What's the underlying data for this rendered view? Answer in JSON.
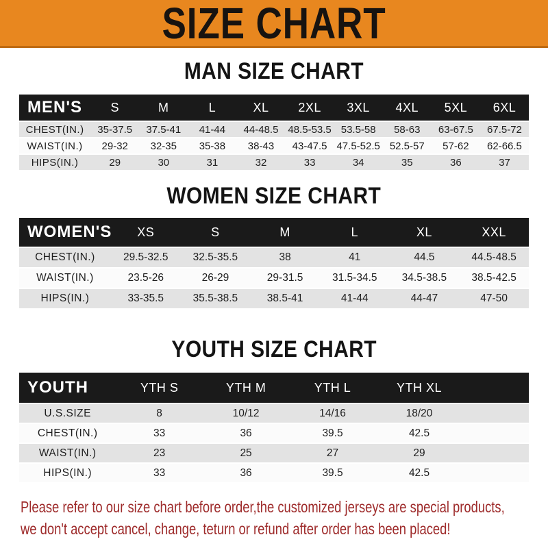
{
  "banner": {
    "title": "SIZE CHART"
  },
  "chart_data": [
    {
      "type": "table",
      "title": "MAN SIZE CHART",
      "header_label": "MEN'S",
      "columns": [
        "S",
        "M",
        "L",
        "XL",
        "2XL",
        "3XL",
        "4XL",
        "5XL",
        "6XL"
      ],
      "rows": [
        {
          "label": "CHEST(IN.)",
          "values": [
            "35-37.5",
            "37.5-41",
            "41-44",
            "44-48.5",
            "48.5-53.5",
            "53.5-58",
            "58-63",
            "63-67.5",
            "67.5-72"
          ]
        },
        {
          "label": "WAIST(IN.)",
          "values": [
            "29-32",
            "32-35",
            "35-38",
            "38-43",
            "43-47.5",
            "47.5-52.5",
            "52.5-57",
            "57-62",
            "62-66.5"
          ]
        },
        {
          "label": "HIPS(IN.)",
          "values": [
            "29",
            "30",
            "31",
            "32",
            "33",
            "34",
            "35",
            "36",
            "37"
          ]
        }
      ]
    },
    {
      "type": "table",
      "title": "WOMEN SIZE CHART",
      "header_label": "WOMEN'S",
      "columns": [
        "XS",
        "S",
        "M",
        "L",
        "XL",
        "XXL"
      ],
      "rows": [
        {
          "label": "CHEST(IN.)",
          "values": [
            "29.5-32.5",
            "32.5-35.5",
            "38",
            "41",
            "44.5",
            "44.5-48.5"
          ]
        },
        {
          "label": "WAIST(IN.)",
          "values": [
            "23.5-26",
            "26-29",
            "29-31.5",
            "31.5-34.5",
            "34.5-38.5",
            "38.5-42.5"
          ]
        },
        {
          "label": "HIPS(IN.)",
          "values": [
            "33-35.5",
            "35.5-38.5",
            "38.5-41",
            "41-44",
            "44-47",
            "47-50"
          ]
        }
      ]
    },
    {
      "type": "table",
      "title": "YOUTH SIZE CHART",
      "header_label": "YOUTH",
      "columns": [
        "YTH S",
        "YTH M",
        "YTH L",
        "YTH XL"
      ],
      "rows": [
        {
          "label": "U.S.SIZE",
          "values": [
            "8",
            "10/12",
            "14/16",
            "18/20"
          ]
        },
        {
          "label": "CHEST(IN.)",
          "values": [
            "33",
            "36",
            "39.5",
            "42.5"
          ]
        },
        {
          "label": "WAIST(IN.)",
          "values": [
            "23",
            "25",
            "27",
            "29"
          ]
        },
        {
          "label": "HIPS(IN.)",
          "values": [
            "33",
            "36",
            "39.5",
            "42.5"
          ]
        }
      ]
    }
  ],
  "footer": {
    "line1": "Please refer to our size chart before order,the customized jerseys are special products,",
    "line2": "we don't accept cancel, change, teturn or refund after order has been placed!"
  },
  "colors": {
    "banner_orange": "#E8871F",
    "header_black": "#1A1A1A",
    "row_shade_gray": "#E3E3E3",
    "footer_red": "#9E2B2B"
  }
}
